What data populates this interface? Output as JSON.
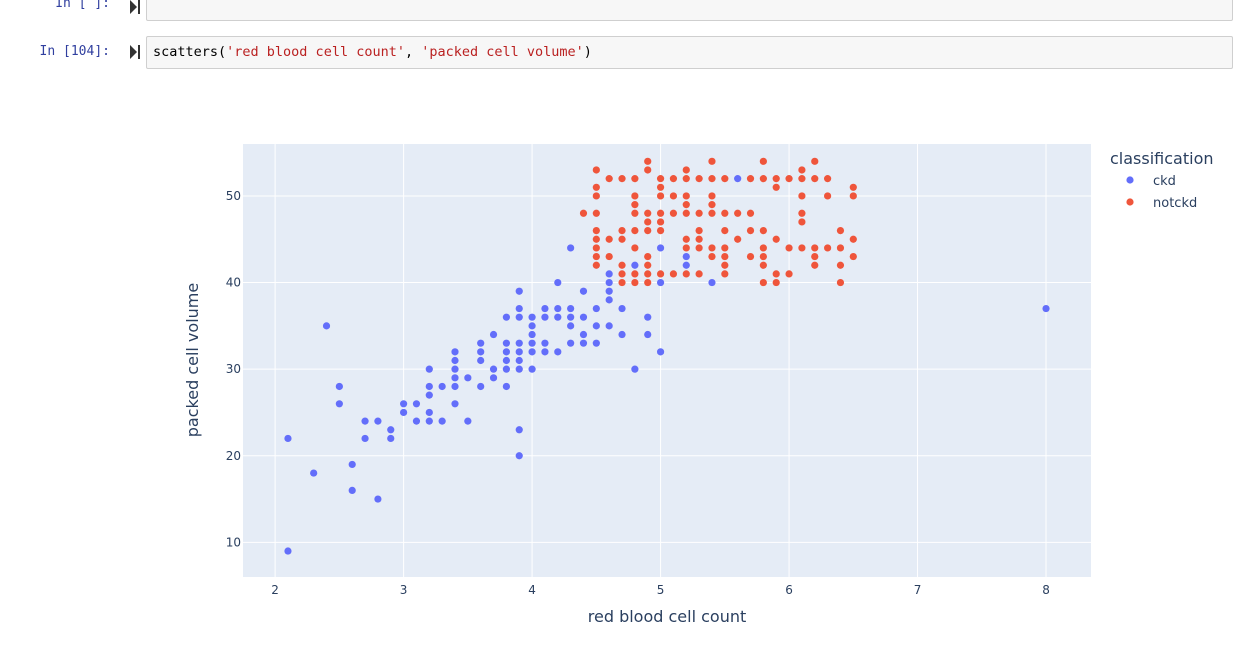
{
  "cells": [
    {
      "prompt": "In [ ]:",
      "code": ""
    },
    {
      "prompt": "In [104]:",
      "code_fn": "scatters(",
      "code_arg1": "'red blood cell count'",
      "code_sep": ", ",
      "code_arg2": "'packed cell volume'",
      "code_end": ")"
    }
  ],
  "chart_data": {
    "type": "scatter",
    "xlabel": "red blood cell count",
    "ylabel": "packed cell volume",
    "xlim": [
      1.75,
      8.35
    ],
    "ylim": [
      6,
      56
    ],
    "xticks": [
      2,
      3,
      4,
      5,
      6,
      7,
      8
    ],
    "yticks": [
      10,
      20,
      30,
      40,
      50
    ],
    "grid": true,
    "legend_title": "classification",
    "legend_position": "top-right",
    "series": [
      {
        "name": "ckd",
        "color": "#636efa",
        "points": [
          [
            2.1,
            9
          ],
          [
            2.1,
            22
          ],
          [
            2.3,
            18
          ],
          [
            2.4,
            35
          ],
          [
            2.5,
            28
          ],
          [
            2.5,
            26
          ],
          [
            2.6,
            19
          ],
          [
            2.6,
            16
          ],
          [
            2.7,
            24
          ],
          [
            2.7,
            22
          ],
          [
            2.8,
            24
          ],
          [
            2.8,
            15
          ],
          [
            2.9,
            23
          ],
          [
            2.9,
            22
          ],
          [
            3.0,
            26
          ],
          [
            3.0,
            25
          ],
          [
            3.1,
            26
          ],
          [
            3.1,
            24
          ],
          [
            3.2,
            30
          ],
          [
            3.2,
            28
          ],
          [
            3.2,
            27
          ],
          [
            3.2,
            25
          ],
          [
            3.2,
            24
          ],
          [
            3.3,
            28
          ],
          [
            3.3,
            24
          ],
          [
            3.4,
            32
          ],
          [
            3.4,
            31
          ],
          [
            3.4,
            30
          ],
          [
            3.4,
            29
          ],
          [
            3.4,
            28
          ],
          [
            3.4,
            26
          ],
          [
            3.5,
            29
          ],
          [
            3.5,
            24
          ],
          [
            3.6,
            33
          ],
          [
            3.6,
            32
          ],
          [
            3.6,
            31
          ],
          [
            3.6,
            28
          ],
          [
            3.7,
            34
          ],
          [
            3.7,
            30
          ],
          [
            3.7,
            29
          ],
          [
            3.8,
            36
          ],
          [
            3.8,
            33
          ],
          [
            3.8,
            32
          ],
          [
            3.8,
            31
          ],
          [
            3.8,
            30
          ],
          [
            3.8,
            28
          ],
          [
            3.9,
            39
          ],
          [
            3.9,
            37
          ],
          [
            3.9,
            36
          ],
          [
            3.9,
            33
          ],
          [
            3.9,
            32
          ],
          [
            3.9,
            31
          ],
          [
            3.9,
            30
          ],
          [
            3.9,
            23
          ],
          [
            3.9,
            20
          ],
          [
            4.0,
            36
          ],
          [
            4.0,
            35
          ],
          [
            4.0,
            34
          ],
          [
            4.0,
            33
          ],
          [
            4.0,
            32
          ],
          [
            4.0,
            30
          ],
          [
            4.1,
            37
          ],
          [
            4.1,
            36
          ],
          [
            4.1,
            33
          ],
          [
            4.1,
            32
          ],
          [
            4.2,
            40
          ],
          [
            4.2,
            37
          ],
          [
            4.2,
            36
          ],
          [
            4.2,
            32
          ],
          [
            4.3,
            44
          ],
          [
            4.3,
            37
          ],
          [
            4.3,
            36
          ],
          [
            4.3,
            35
          ],
          [
            4.3,
            33
          ],
          [
            4.4,
            39
          ],
          [
            4.4,
            36
          ],
          [
            4.4,
            34
          ],
          [
            4.4,
            33
          ],
          [
            4.5,
            37
          ],
          [
            4.5,
            35
          ],
          [
            4.5,
            33
          ],
          [
            4.6,
            41
          ],
          [
            4.6,
            40
          ],
          [
            4.6,
            39
          ],
          [
            4.6,
            38
          ],
          [
            4.6,
            35
          ],
          [
            4.7,
            37
          ],
          [
            4.7,
            34
          ],
          [
            4.8,
            42
          ],
          [
            4.8,
            30
          ],
          [
            4.9,
            36
          ],
          [
            4.9,
            34
          ],
          [
            5.0,
            44
          ],
          [
            5.0,
            40
          ],
          [
            5.0,
            32
          ],
          [
            5.2,
            43
          ],
          [
            5.2,
            42
          ],
          [
            5.4,
            40
          ],
          [
            5.6,
            52
          ],
          [
            8.0,
            37
          ]
        ]
      },
      {
        "name": "notckd",
        "color": "#ef553b",
        "points": [
          [
            4.4,
            48
          ],
          [
            4.5,
            53
          ],
          [
            4.5,
            51
          ],
          [
            4.5,
            50
          ],
          [
            4.5,
            48
          ],
          [
            4.5,
            46
          ],
          [
            4.5,
            45
          ],
          [
            4.5,
            44
          ],
          [
            4.5,
            43
          ],
          [
            4.5,
            42
          ],
          [
            4.6,
            52
          ],
          [
            4.6,
            45
          ],
          [
            4.6,
            43
          ],
          [
            4.7,
            52
          ],
          [
            4.7,
            46
          ],
          [
            4.7,
            45
          ],
          [
            4.7,
            42
          ],
          [
            4.7,
            41
          ],
          [
            4.7,
            40
          ],
          [
            4.8,
            52
          ],
          [
            4.8,
            50
          ],
          [
            4.8,
            49
          ],
          [
            4.8,
            48
          ],
          [
            4.8,
            46
          ],
          [
            4.8,
            44
          ],
          [
            4.8,
            41
          ],
          [
            4.8,
            40
          ],
          [
            4.9,
            54
          ],
          [
            4.9,
            53
          ],
          [
            4.9,
            48
          ],
          [
            4.9,
            47
          ],
          [
            4.9,
            46
          ],
          [
            4.9,
            43
          ],
          [
            4.9,
            42
          ],
          [
            4.9,
            41
          ],
          [
            4.9,
            40
          ],
          [
            5.0,
            52
          ],
          [
            5.0,
            51
          ],
          [
            5.0,
            50
          ],
          [
            5.0,
            48
          ],
          [
            5.0,
            47
          ],
          [
            5.0,
            46
          ],
          [
            5.0,
            41
          ],
          [
            5.1,
            52
          ],
          [
            5.1,
            50
          ],
          [
            5.1,
            48
          ],
          [
            5.1,
            41
          ],
          [
            5.2,
            53
          ],
          [
            5.2,
            52
          ],
          [
            5.2,
            50
          ],
          [
            5.2,
            49
          ],
          [
            5.2,
            48
          ],
          [
            5.2,
            45
          ],
          [
            5.2,
            44
          ],
          [
            5.2,
            41
          ],
          [
            5.3,
            52
          ],
          [
            5.3,
            48
          ],
          [
            5.3,
            46
          ],
          [
            5.3,
            45
          ],
          [
            5.3,
            44
          ],
          [
            5.3,
            41
          ],
          [
            5.4,
            54
          ],
          [
            5.4,
            52
          ],
          [
            5.4,
            50
          ],
          [
            5.4,
            49
          ],
          [
            5.4,
            48
          ],
          [
            5.4,
            44
          ],
          [
            5.4,
            43
          ],
          [
            5.5,
            52
          ],
          [
            5.5,
            48
          ],
          [
            5.5,
            46
          ],
          [
            5.5,
            44
          ],
          [
            5.5,
            43
          ],
          [
            5.5,
            42
          ],
          [
            5.5,
            41
          ],
          [
            5.6,
            48
          ],
          [
            5.6,
            45
          ],
          [
            5.7,
            52
          ],
          [
            5.7,
            48
          ],
          [
            5.7,
            46
          ],
          [
            5.7,
            43
          ],
          [
            5.8,
            54
          ],
          [
            5.8,
            52
          ],
          [
            5.8,
            46
          ],
          [
            5.8,
            44
          ],
          [
            5.8,
            43
          ],
          [
            5.8,
            42
          ],
          [
            5.8,
            40
          ],
          [
            5.9,
            52
          ],
          [
            5.9,
            51
          ],
          [
            5.9,
            45
          ],
          [
            5.9,
            41
          ],
          [
            5.9,
            40
          ],
          [
            6.0,
            52
          ],
          [
            6.0,
            44
          ],
          [
            6.0,
            41
          ],
          [
            6.1,
            53
          ],
          [
            6.1,
            52
          ],
          [
            6.1,
            50
          ],
          [
            6.1,
            48
          ],
          [
            6.1,
            47
          ],
          [
            6.1,
            44
          ],
          [
            6.2,
            54
          ],
          [
            6.2,
            52
          ],
          [
            6.2,
            44
          ],
          [
            6.2,
            43
          ],
          [
            6.2,
            42
          ],
          [
            6.3,
            52
          ],
          [
            6.3,
            50
          ],
          [
            6.3,
            44
          ],
          [
            6.4,
            46
          ],
          [
            6.4,
            44
          ],
          [
            6.4,
            42
          ],
          [
            6.4,
            40
          ],
          [
            6.5,
            51
          ],
          [
            6.5,
            50
          ],
          [
            6.5,
            45
          ],
          [
            6.5,
            43
          ]
        ]
      }
    ]
  }
}
